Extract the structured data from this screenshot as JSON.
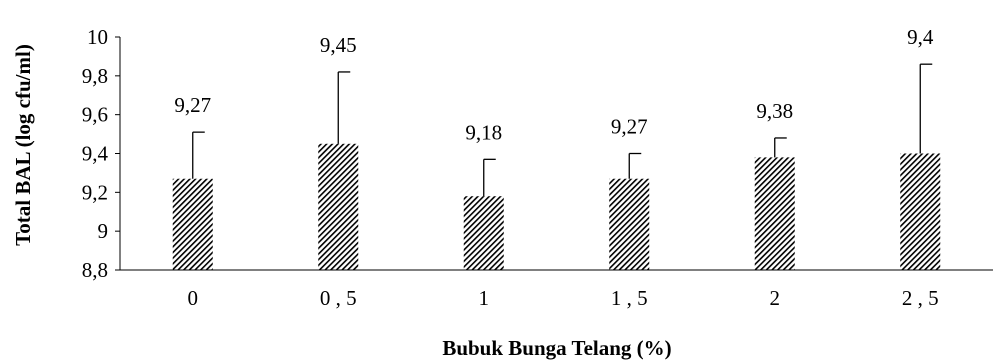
{
  "chart_data": {
    "type": "bar",
    "title": "",
    "xlabel": "Bubuk Bunga Telang (%)",
    "ylabel": "Total BAL (log cfu/ml)",
    "categories": [
      "0",
      "0 , 5",
      "1",
      "1 , 5",
      "2",
      "2 , 5"
    ],
    "values": [
      9.27,
      9.45,
      9.18,
      9.27,
      9.38,
      9.4
    ],
    "data_labels": [
      "9,27",
      "9,45",
      "9,18",
      "9,27",
      "9,38",
      "9,4"
    ],
    "error_upper": [
      9.51,
      9.82,
      9.37,
      9.4,
      9.48,
      9.86
    ],
    "ylim": [
      8.8,
      10
    ],
    "yticks": [
      8.8,
      9,
      9.2,
      9.4,
      9.6,
      9.8,
      10
    ],
    "ytick_labels": [
      "8,8",
      "9",
      "9,2",
      "9,4",
      "9,6",
      "9,8",
      "10"
    ],
    "grid": false,
    "legend": "none",
    "bar_fill": "diagonal-hatch",
    "colors": {
      "bar_hatch": "#000000",
      "axis": "#000000"
    }
  }
}
